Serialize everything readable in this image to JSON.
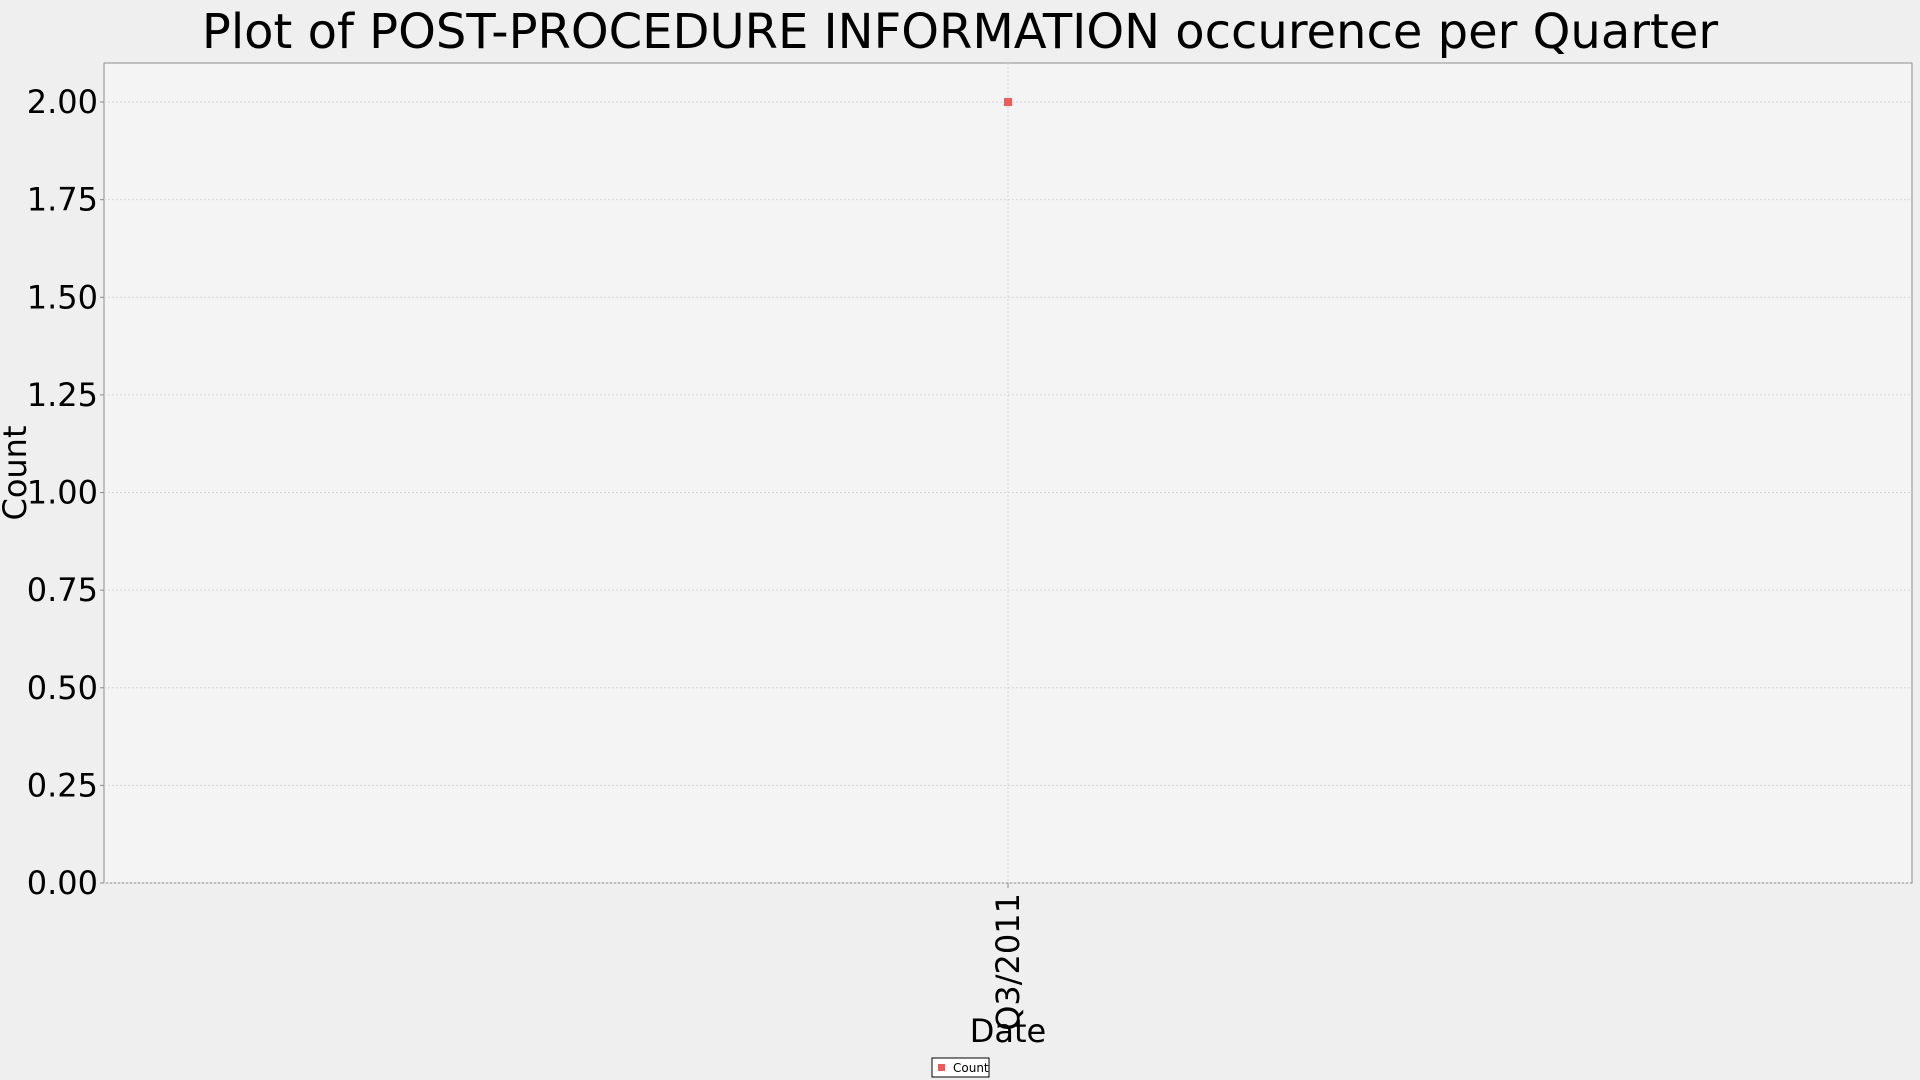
{
  "chart_data": {
    "type": "scatter",
    "title": "Plot of POST-PROCEDURE INFORMATION occurence per Quarter",
    "xlabel": "Date",
    "ylabel": "Count",
    "categories": [
      "Q3/2011"
    ],
    "ylim": [
      0,
      2.1
    ],
    "yticks": [
      "0.00",
      "0.25",
      "0.50",
      "0.75",
      "1.00",
      "1.25",
      "1.50",
      "1.75",
      "2.00"
    ],
    "grid": true,
    "legend_position": "bottom-center",
    "series": [
      {
        "name": "Count",
        "color": "#ef5a5a",
        "marker": "square",
        "values": [
          2
        ]
      }
    ]
  }
}
